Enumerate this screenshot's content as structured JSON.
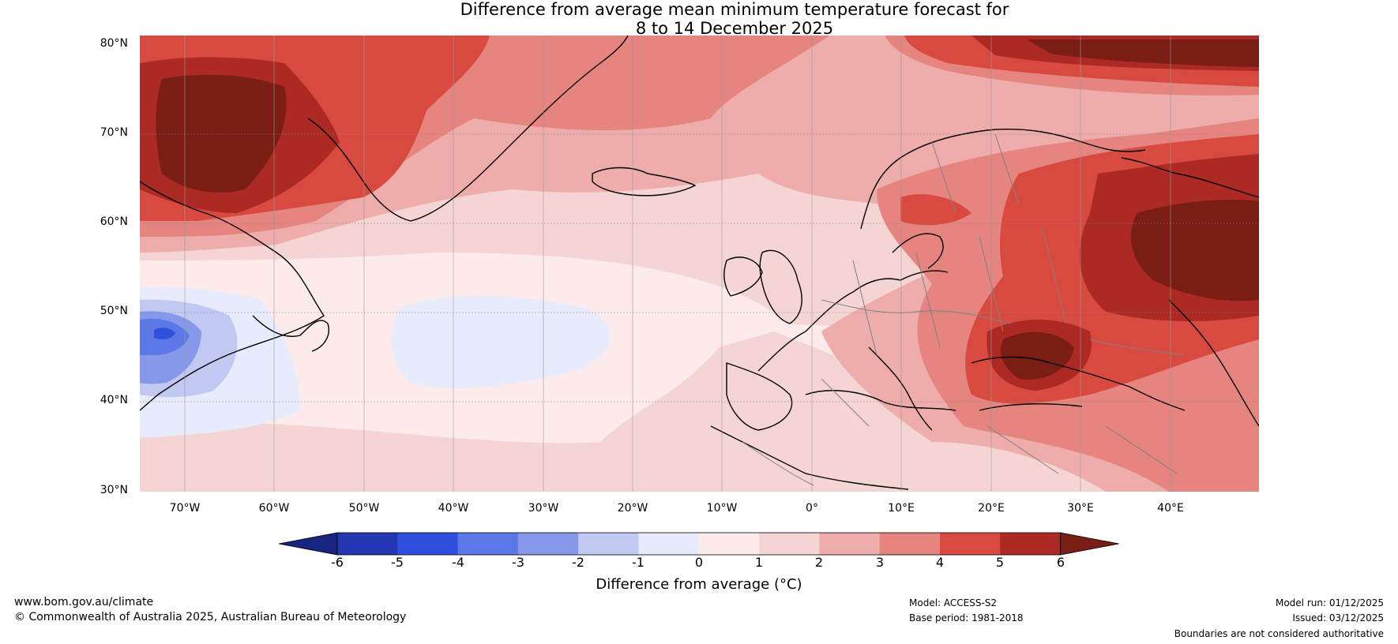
{
  "title": {
    "line1": "Difference from average mean minimum temperature forecast for",
    "line2": "8 to 14 December 2025"
  },
  "map": {
    "region": "North Atlantic and Europe",
    "lat_range": [
      30,
      80
    ],
    "lon_range": [
      -75,
      50
    ],
    "lat_labels": [
      "80°N",
      "70°N",
      "60°N",
      "50°N",
      "40°N",
      "30°N"
    ],
    "lon_labels": [
      "70°W",
      "60°W",
      "50°W",
      "40°W",
      "30°W",
      "20°W",
      "10°W",
      "0°",
      "10°E",
      "20°E",
      "30°E",
      "40°E"
    ]
  },
  "colorbar": {
    "title": "Difference from average (°C)",
    "tick_labels": [
      "-6",
      "-5",
      "-4",
      "-3",
      "-2",
      "-1",
      "0",
      "1",
      "2",
      "3",
      "4",
      "5",
      "6"
    ],
    "colors": {
      "below_min": "#172480",
      "m6_m5": "#2436b0",
      "m5_m4": "#2f4fdc",
      "m4_m3": "#5b78e6",
      "m3_m2": "#8798ea",
      "m2_m1": "#c1c9f3",
      "m1_0": "#e8ebfb",
      "0_1": "#fcebea",
      "1_2": "#f5d5d4",
      "2_3": "#eeadab",
      "3_4": "#e68480",
      "4_5": "#d84a40",
      "5_6": "#ac2a23",
      "above_max": "#7a1d15"
    }
  },
  "footer": {
    "website": "www.bom.gov.au/climate",
    "copyright": "© Commonwealth of Australia 2025, Australian Bureau of Meteorology",
    "model": "Model: ACCESS-S2",
    "base_period": "Base period: 1981-2018",
    "model_run": "Model run: 01/12/2025",
    "issued": "Issued: 03/12/2025",
    "disclaimer": "Boundaries are not considered authoritative"
  }
}
